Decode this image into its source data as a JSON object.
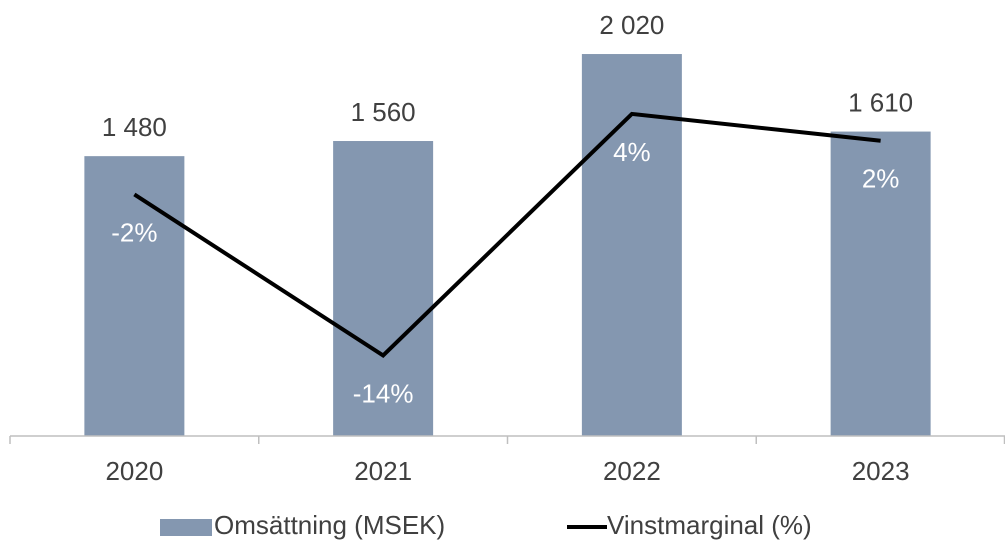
{
  "chart_data": {
    "type": "bar",
    "categories": [
      "2020",
      "2021",
      "2022",
      "2023"
    ],
    "ylim": [
      0,
      2200
    ],
    "y2lim": [
      -20,
      11
    ],
    "series": [
      {
        "name": "Omsättning (MSEK)",
        "type": "bar",
        "color": "#8497b0",
        "values": [
          1480,
          1560,
          2020,
          1610
        ],
        "value_labels": [
          "1 480",
          "1 560",
          "2 020",
          "1 610"
        ]
      },
      {
        "name": "Vinstmarginal (%)",
        "type": "line",
        "axis": "y2",
        "color": "#000000",
        "values": [
          -2,
          -14,
          4,
          2
        ],
        "value_labels": [
          "-2%",
          "-14%",
          "4%",
          "2%"
        ]
      }
    ]
  }
}
